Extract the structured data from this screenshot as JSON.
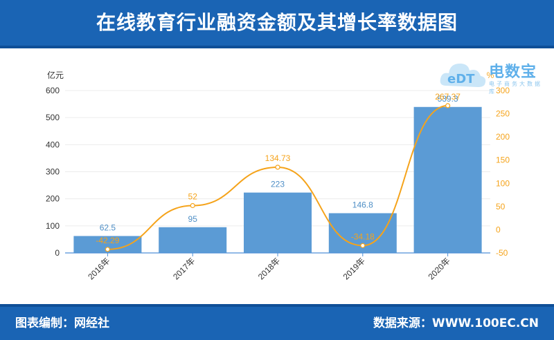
{
  "header": {
    "title": "在线教育行业融资金额及其增长率数据图"
  },
  "footer": {
    "left": "图表编制：网经社",
    "right": "数据来源：WWW.100EC.CN"
  },
  "watermark": {
    "main": "电数宝",
    "sub": "电子商务大数据库",
    "logo": "eDT"
  },
  "colors": {
    "bar": "#5b9bd5",
    "bar_label": "#4f8fc6",
    "line": "#f5a31a",
    "header": "#1a64b4"
  },
  "chart_data": {
    "type": "bar",
    "categories": [
      "2016年",
      "2017年",
      "2018年",
      "2019年",
      "2020年"
    ],
    "series": [
      {
        "type": "bar",
        "axis": "left",
        "values": [
          62.5,
          95,
          223,
          146.8,
          539.3
        ]
      },
      {
        "type": "line",
        "axis": "right",
        "values": [
          -42.29,
          52,
          134.73,
          -34.18,
          267.37
        ]
      }
    ],
    "left_axis": {
      "unit": "亿元",
      "ylim": [
        0,
        600
      ],
      "ticks": [
        0,
        100,
        200,
        300,
        400,
        500,
        600
      ]
    },
    "right_axis": {
      "unit": "%",
      "ylim": [
        -50,
        300
      ],
      "ticks": [
        -50,
        0,
        50,
        100,
        150,
        200,
        250,
        300
      ]
    },
    "grid": true,
    "legend": false
  }
}
